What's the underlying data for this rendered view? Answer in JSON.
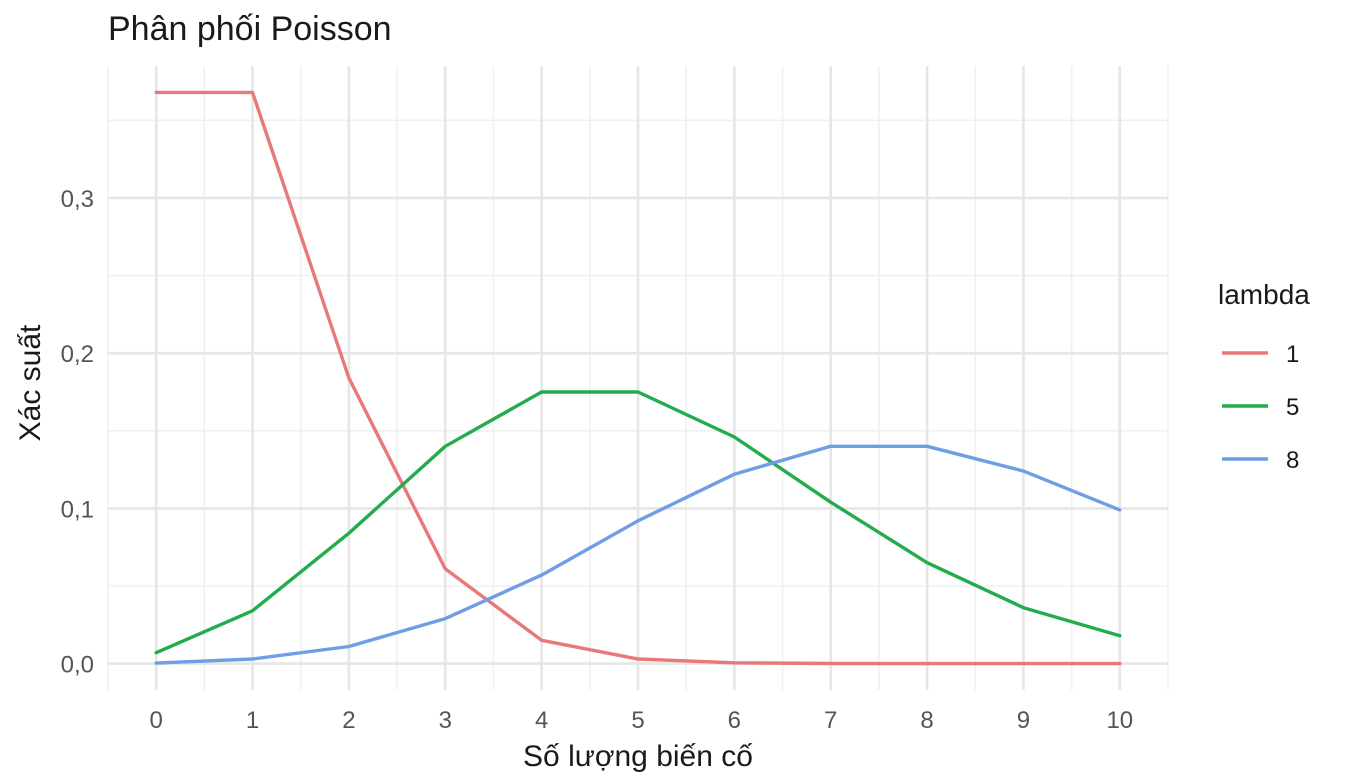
{
  "chart_data": {
    "type": "line",
    "title": "Phân phối Poisson",
    "xlabel": "Số lượng biến cố",
    "ylabel": "Xác suất",
    "x": [
      0,
      1,
      2,
      3,
      4,
      5,
      6,
      7,
      8,
      9,
      10
    ],
    "x_ticks": [
      "0",
      "1",
      "2",
      "3",
      "4",
      "5",
      "6",
      "7",
      "8",
      "9",
      "10"
    ],
    "y_ticks": [
      0,
      0.1,
      0.2,
      0.3
    ],
    "y_tick_labels": [
      "0,0",
      "0,1",
      "0,2",
      "0,3"
    ],
    "xlim": [
      -0.5,
      10.5
    ],
    "ylim": [
      -0.017,
      0.385
    ],
    "grid": true,
    "legend": {
      "title": "lambda",
      "position": "right"
    },
    "series": [
      {
        "name": "1",
        "color": "#e8787a",
        "values": [
          0.368,
          0.368,
          0.184,
          0.061,
          0.015,
          0.003,
          0.0005,
          0.0001,
          0.0,
          0.0,
          0.0
        ]
      },
      {
        "name": "5",
        "color": "#22ac4b",
        "values": [
          0.007,
          0.034,
          0.084,
          0.14,
          0.175,
          0.175,
          0.146,
          0.104,
          0.065,
          0.036,
          0.018
        ]
      },
      {
        "name": "8",
        "color": "#6f9de6",
        "values": [
          0.0003,
          0.003,
          0.011,
          0.029,
          0.057,
          0.092,
          0.122,
          0.14,
          0.14,
          0.124,
          0.099
        ]
      }
    ]
  }
}
